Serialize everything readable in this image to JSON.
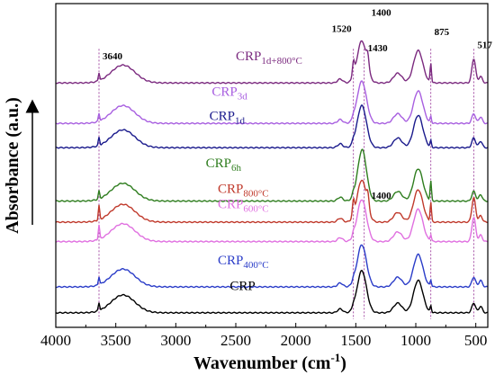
{
  "chart_data": {
    "type": "line",
    "xlabel": "Wavenumber (cm",
    "xlabel_sup": "-1",
    "xlabel_end": ")",
    "ylabel": "Absorbance (a.u.)",
    "xlim": [
      4000,
      400
    ],
    "x_reversed": true,
    "xticks": [
      {
        "v": 4000,
        "label": "4000"
      },
      {
        "v": 3500,
        "label": "3500"
      },
      {
        "v": 3000,
        "label": "3000"
      },
      {
        "v": 2500,
        "label": "2500"
      },
      {
        "v": 2000,
        "label": "2000"
      },
      {
        "v": 1500,
        "label": "1500"
      },
      {
        "v": 1000,
        "label": "1000"
      },
      {
        "v": 500,
        "label": "500"
      }
    ],
    "grid": false,
    "peak_annotations": [
      {
        "label": "3640",
        "x": 3640,
        "level": 0.145
      },
      {
        "label": "1520",
        "x": 1520,
        "level": 0.06
      },
      {
        "label": "1400",
        "x": 1400,
        "level": 0.01
      },
      {
        "label": "1430",
        "x": 1430,
        "level": 0.12
      },
      {
        "label": "875",
        "x": 875,
        "level": 0.07
      },
      {
        "label": "517",
        "x": 517,
        "level": 0.11
      },
      {
        "label": "1400",
        "x": 1400,
        "level": 0.575
      }
    ],
    "reference_lines": [
      3640,
      1520,
      1430,
      875,
      517
    ],
    "series": [
      {
        "name": "CRP",
        "sub": "1d+800°C",
        "color": "#7b2a7f",
        "baseline": 0.245,
        "label_x": 2500,
        "label_level": 0.175
      },
      {
        "name": "CRP",
        "sub": "3d",
        "color": "#a85fe0",
        "baseline": 0.37,
        "label_x": 2700,
        "label_level": 0.285
      },
      {
        "name": "CRP",
        "sub": "1d",
        "color": "#1a1a8c",
        "baseline": 0.445,
        "label_x": 2720,
        "label_level": 0.36
      },
      {
        "name": "CRP",
        "sub": "6h",
        "color": "#2e7d1e",
        "baseline": 0.61,
        "label_x": 2750,
        "label_level": 0.505
      },
      {
        "name": "CRP",
        "sub": "800°C",
        "color": "#c0392b",
        "baseline": 0.675,
        "label_x": 2650,
        "label_level": 0.585
      },
      {
        "name": "CRP",
        "sub": "600°C",
        "color": "#e070e0",
        "baseline": 0.735,
        "label_x": 2650,
        "label_level": 0.632
      },
      {
        "name": "CRP",
        "sub": "400°C",
        "color": "#2a3cc8",
        "baseline": 0.875,
        "label_x": 2650,
        "label_level": 0.805
      },
      {
        "name": "CRP",
        "sub": "",
        "color": "#000000",
        "baseline": 0.955,
        "label_x": 2550,
        "label_level": 0.885
      }
    ]
  }
}
